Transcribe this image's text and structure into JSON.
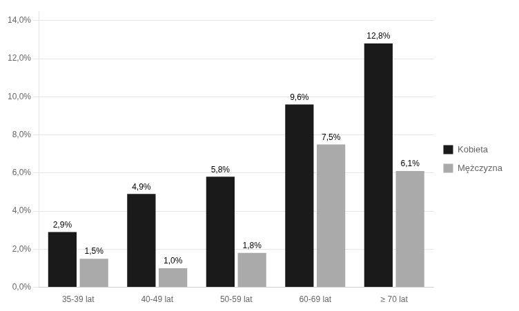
{
  "chart_data": {
    "type": "bar",
    "categories": [
      "35-39 lat",
      "40-49 lat",
      "50-59 lat",
      "60-69 lat",
      "≥ 70 lat"
    ],
    "series": [
      {
        "name": "Kobieta",
        "color": "#1a1a1a",
        "values": [
          2.9,
          4.9,
          5.8,
          9.6,
          12.8
        ],
        "value_labels": [
          "2,9%",
          "4,9%",
          "5,8%",
          "9,6%",
          "12,8%"
        ]
      },
      {
        "name": "Mężczyzna",
        "color": "#aaaaaa",
        "values": [
          1.5,
          1.0,
          1.8,
          7.5,
          6.1
        ],
        "value_labels": [
          "1,5%",
          "1,0%",
          "1,8%",
          "7,5%",
          "6,1%"
        ]
      }
    ],
    "ylim": [
      0,
      14.5
    ],
    "yticks": [
      {
        "value": 0.0,
        "label": "0,0%"
      },
      {
        "value": 2.0,
        "label": "2,0%"
      },
      {
        "value": 4.0,
        "label": "4,0%"
      },
      {
        "value": 6.0,
        "label": "6,0%"
      },
      {
        "value": 8.0,
        "label": "8,0%"
      },
      {
        "value": 10.0,
        "label": "10,0%"
      },
      {
        "value": 12.0,
        "label": "12,0%"
      },
      {
        "value": 14.0,
        "label": "14,0%"
      }
    ],
    "grid": true,
    "legend": "right",
    "data_labels": true
  }
}
